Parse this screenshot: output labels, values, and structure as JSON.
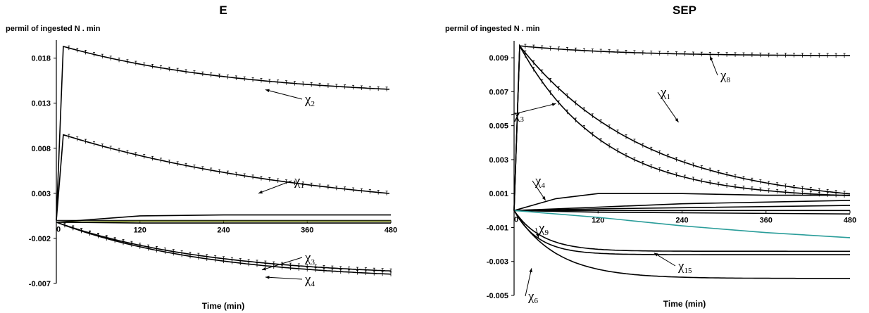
{
  "chart_data": [
    {
      "type": "line",
      "title": "E",
      "ylabel": "permil of ingested N . min",
      "xlabel": "Time (min)",
      "xlim": [
        0,
        480
      ],
      "ylim": [
        -0.007,
        0.02
      ],
      "xticks": [
        120,
        240,
        360,
        480
      ],
      "yticks": [
        0.018,
        0.013,
        0.008,
        0.003,
        -0.002,
        -0.007
      ],
      "ytick_labels": [
        "0.018",
        "0.013",
        "0.008",
        "0.003",
        "-0.002",
        "-0.007"
      ],
      "grid": false,
      "series": [
        {
          "name": "χ2",
          "peak_x": 10,
          "peak_y": 0.0193,
          "end_y": 0.0136,
          "tau": 260,
          "error_bars": true
        },
        {
          "name": "χ1",
          "peak_x": 10,
          "peak_y": 0.0095,
          "end_y": 0.0003,
          "tau": 380,
          "error_bars": true
        },
        {
          "name": "",
          "points": [
            [
              0,
              -0.0002
            ],
            [
              120,
              0.0005
            ],
            [
              240,
              0.0006
            ],
            [
              480,
              0.0006
            ]
          ],
          "color": "#000000"
        },
        {
          "name": "",
          "points": [
            [
              0,
              -0.0002
            ],
            [
              120,
              -0.0001
            ],
            [
              480,
              -0.0001
            ]
          ],
          "color": "#6b7a10"
        },
        {
          "name": "",
          "points": [
            [
              0,
              -0.0002
            ],
            [
              120,
              -0.0003
            ],
            [
              480,
              -0.0003
            ]
          ],
          "color": "#000000"
        },
        {
          "name": "χ3",
          "start_y": -0.0002,
          "end_y": -0.0063,
          "tau": 220,
          "error_bars": true
        },
        {
          "name": "χ4",
          "start_y": -0.0002,
          "end_y": -0.0067,
          "tau": 220,
          "error_bars": true
        }
      ],
      "annotations": [
        {
          "symbol": "χ",
          "sub": "2",
          "target": [
            300,
            0.0145
          ]
        },
        {
          "symbol": "χ",
          "sub": "1",
          "target": [
            290,
            0.003
          ]
        },
        {
          "symbol": "χ",
          "sub": "3",
          "target": [
            295,
            -0.0055
          ]
        },
        {
          "symbol": "χ",
          "sub": "4",
          "target": [
            300,
            -0.0063
          ]
        }
      ]
    },
    {
      "type": "line",
      "title": "SEP",
      "ylabel": "permil of ingested N . min",
      "xlabel": "Time (min)",
      "xlim": [
        0,
        480
      ],
      "ylim": [
        -0.005,
        0.01
      ],
      "xticks": [
        120,
        240,
        360,
        480
      ],
      "yticks": [
        0.009,
        0.007,
        0.005,
        0.003,
        0.001,
        -0.001,
        -0.003,
        -0.005
      ],
      "ytick_labels": [
        "0.009",
        "0.007",
        "0.005",
        "0.003",
        "0.001",
        "-0.001",
        "-0.003",
        "-0.005"
      ],
      "grid": false,
      "series": [
        {
          "name": "χ8",
          "peak_x": 8,
          "peak_y": 0.0097,
          "end_y": 0.0091,
          "tau": 150,
          "error_bars": true
        },
        {
          "name": "χ1",
          "peak_x": 8,
          "peak_y": 0.0097,
          "end_y": 0.0003,
          "tau": 180,
          "error_bars": true
        },
        {
          "name": "χ3",
          "peak_x": 8,
          "peak_y": 0.0097,
          "end_y": 0.0007,
          "tau": 120,
          "error_bars": true
        },
        {
          "name": "χ4",
          "points": [
            [
              0,
              0
            ],
            [
              60,
              0.0007
            ],
            [
              120,
              0.001
            ],
            [
              180,
              0.001
            ],
            [
              240,
              0.001
            ],
            [
              360,
              0.0009
            ],
            [
              480,
              0.0009
            ]
          ],
          "color": "#000000"
        },
        {
          "name": "",
          "points": [
            [
              0,
              0
            ],
            [
              120,
              0.0002
            ],
            [
              240,
              0.0004
            ],
            [
              480,
              0.0006
            ]
          ],
          "color": "#000000"
        },
        {
          "name": "",
          "points": [
            [
              0,
              0
            ],
            [
              120,
              0.0001
            ],
            [
              480,
              0.0003
            ]
          ],
          "color": "#000000"
        },
        {
          "name": "",
          "points": [
            [
              0,
              0
            ],
            [
              480,
              0.0
            ]
          ],
          "color": "#000000"
        },
        {
          "name": "",
          "points": [
            [
              0,
              0
            ],
            [
              120,
              -0.0001
            ],
            [
              480,
              -0.0002
            ]
          ],
          "color": "#000000"
        },
        {
          "name": "",
          "points": [
            [
              0,
              0
            ],
            [
              120,
              -0.0004
            ],
            [
              240,
              -0.0009
            ],
            [
              360,
              -0.0013
            ],
            [
              480,
              -0.0016
            ]
          ],
          "color": "#2a9d9a"
        },
        {
          "name": "χ9",
          "start_y": 0,
          "end_y": -0.0024,
          "tau": 40,
          "error_bars": false
        },
        {
          "name": "χ15",
          "start_y": 0,
          "end_y": -0.0026,
          "tau": 35,
          "error_bars": false
        },
        {
          "name": "χ6",
          "start_y": 0,
          "end_y": -0.004,
          "tau": 60,
          "error_bars": false
        }
      ],
      "annotations": [
        {
          "symbol": "χ",
          "sub": "8",
          "target": [
            280,
            0.0091
          ]
        },
        {
          "symbol": "χ",
          "sub": "1",
          "target": [
            235,
            0.0052
          ]
        },
        {
          "symbol": "χ",
          "sub": "3",
          "target": [
            60,
            0.0063
          ]
        },
        {
          "symbol": "χ",
          "sub": "4",
          "target": [
            45,
            0.0006
          ]
        },
        {
          "symbol": "χ",
          "sub": "9",
          "target": [
            35,
            -0.0016
          ]
        },
        {
          "symbol": "χ",
          "sub": "15",
          "target": [
            200,
            -0.0025
          ]
        },
        {
          "symbol": "χ",
          "sub": "6",
          "target": [
            25,
            -0.0034
          ]
        }
      ]
    }
  ]
}
